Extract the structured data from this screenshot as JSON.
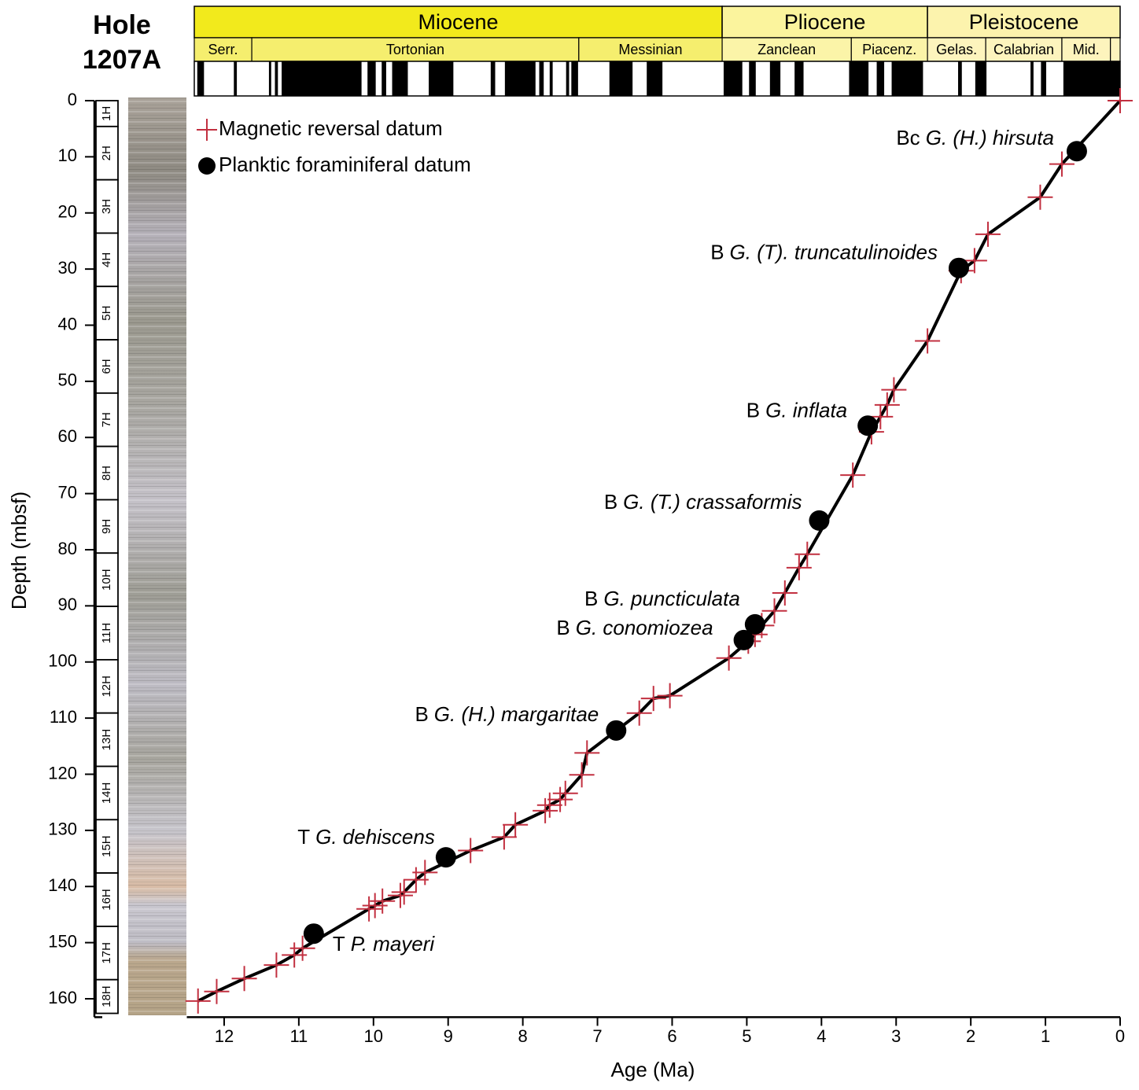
{
  "chart_data": {
    "type": "line",
    "title": [
      "Hole",
      "1207A"
    ],
    "x_label": "Age (Ma)",
    "y_label": "Depth (mbsf)",
    "xlim": [
      12.5,
      0
    ],
    "ylim": [
      0,
      163
    ],
    "y_inverted": true,
    "xticks": [
      12,
      11,
      10,
      9,
      8,
      7,
      6,
      5,
      4,
      3,
      2,
      1,
      0
    ],
    "yticks": [
      0,
      10,
      20,
      30,
      40,
      50,
      60,
      70,
      80,
      90,
      100,
      110,
      120,
      130,
      140,
      150,
      160
    ],
    "legend": "upper left",
    "series": [
      {
        "name": "Magnetic reversal datum",
        "color": "#c23040",
        "marker": "cross",
        "line_color": "#000000",
        "x": [
          0,
          0.78,
          1.07,
          1.77,
          1.95,
          2.13,
          2.58,
          3.03,
          3.12,
          3.21,
          3.33,
          3.58,
          4.19,
          4.3,
          4.49,
          4.63,
          4.8,
          4.89,
          4.98,
          5.24,
          6.03,
          6.25,
          6.44,
          7.14,
          7.21,
          7.43,
          7.5,
          7.64,
          7.7,
          8.1,
          8.25,
          8.7,
          9.31,
          9.43,
          9.59,
          9.64,
          9.88,
          9.98,
          10.06,
          10.95,
          11.06,
          11.3,
          11.73,
          12.1,
          12.35
        ],
        "y": [
          0,
          11.3,
          17.2,
          23.8,
          28.5,
          30.3,
          42.8,
          51.5,
          54.2,
          56.3,
          59.0,
          66.7,
          80.8,
          83.2,
          87.7,
          90.9,
          93.5,
          95.1,
          96.3,
          99.3,
          106.0,
          106.5,
          109.1,
          116.2,
          120.1,
          123.4,
          124.5,
          125.5,
          126.5,
          129.0,
          131.2,
          133.6,
          137.5,
          138.8,
          141.0,
          141.6,
          142.6,
          143.4,
          144.0,
          151.0,
          152.2,
          154.0,
          156.4,
          158.7,
          160.4
        ]
      },
      {
        "name": "Planktic foraminiferal datum",
        "color": "#000000",
        "marker": "dot",
        "x": [
          0.58,
          2.16,
          3.38,
          4.03,
          4.89,
          5.04,
          6.75,
          9.03,
          10.8
        ],
        "y": [
          9.0,
          29.8,
          57.9,
          74.8,
          93.3,
          96.1,
          112.2,
          134.8,
          148.4
        ],
        "labels": [
          {
            "prefix": "Bc",
            "taxon": "G. (H.) hirsuta"
          },
          {
            "prefix": "B",
            "taxon": "G. (T). truncatulinoides"
          },
          {
            "prefix": "B",
            "taxon": "G. inflata"
          },
          {
            "prefix": "B",
            "taxon": "G. (T.) crassaformis"
          },
          {
            "prefix": "B",
            "taxon": "G. puncticulata"
          },
          {
            "prefix": "B",
            "taxon": "G. conomiozea"
          },
          {
            "prefix": "B",
            "taxon": "G. (H.) margaritae"
          },
          {
            "prefix": "T",
            "taxon": "G. dehiscens"
          },
          {
            "prefix": "T",
            "taxon": "P. mayeri"
          }
        ]
      }
    ],
    "epochs": {
      "names": [
        "Miocene",
        "Pliocene",
        "Pleistocene"
      ],
      "ranges": [
        [
          12.4,
          5.33
        ],
        [
          5.33,
          2.58
        ],
        [
          2.58,
          0
        ]
      ],
      "colors": [
        "#f2ea1c",
        "#fbf49d",
        "#fcf3ad"
      ]
    },
    "stages": {
      "names": [
        "Serr.",
        "Tortonian",
        "Messinian",
        "Zanclean",
        "Piacenz.",
        "Gelas.",
        "Calabrian",
        "Mid.",
        null
      ],
      "ranges": [
        [
          12.4,
          11.63
        ],
        [
          11.63,
          7.25
        ],
        [
          7.25,
          5.33
        ],
        [
          5.33,
          3.6
        ],
        [
          3.6,
          2.58
        ],
        [
          2.58,
          1.8
        ],
        [
          1.8,
          0.78
        ],
        [
          0.78,
          0.13
        ],
        [
          0.13,
          0
        ]
      ],
      "colors": [
        "#f5ee6e",
        "#f5ee6e",
        "#f5ee6e",
        "#fbf4a8",
        "#fbf4a8",
        "#fdf4bd",
        "#fdf4bd",
        "#fdf4bd",
        "#fdf4bd"
      ]
    },
    "polarity_normal": [
      [
        12.36,
        12.27
      ],
      [
        11.87,
        11.83
      ],
      [
        11.4,
        11.37
      ],
      [
        11.32,
        11.28
      ],
      [
        11.23,
        10.16
      ],
      [
        10.08,
        9.97
      ],
      [
        9.89,
        9.83
      ],
      [
        9.75,
        9.54
      ],
      [
        9.26,
        8.93
      ],
      [
        8.43,
        8.37
      ],
      [
        8.24,
        7.83
      ],
      [
        7.78,
        7.72
      ],
      [
        7.64,
        7.6
      ],
      [
        7.42,
        7.38
      ],
      [
        7.35,
        7.26
      ],
      [
        6.84,
        6.53
      ],
      [
        6.34,
        6.13
      ],
      [
        5.31,
        5.06
      ],
      [
        4.97,
        4.88
      ],
      [
        4.69,
        4.55
      ],
      [
        4.36,
        4.24
      ],
      [
        3.63,
        3.37
      ],
      [
        3.26,
        3.16
      ],
      [
        3.06,
        2.64
      ],
      [
        2.17,
        2.12
      ],
      [
        1.94,
        1.79
      ],
      [
        1.2,
        1.16
      ],
      [
        1.06,
        0.99
      ],
      [
        0.76,
        0
      ]
    ],
    "cores": {
      "names": [
        "1H",
        "2H",
        "3H",
        "4H",
        "5H",
        "6H",
        "7H",
        "8H",
        "9H",
        "10H",
        "11H",
        "12H",
        "13H",
        "14H",
        "15H",
        "16H",
        "17H",
        "18H"
      ],
      "depths": [
        [
          0,
          4.6
        ],
        [
          4.6,
          14.1
        ],
        [
          14.1,
          23.6
        ],
        [
          23.6,
          33.1
        ],
        [
          33.1,
          42.6
        ],
        [
          42.6,
          52.1
        ],
        [
          52.1,
          61.6
        ],
        [
          61.6,
          71.1
        ],
        [
          71.1,
          80.6
        ],
        [
          80.6,
          90.1
        ],
        [
          90.1,
          99.6
        ],
        [
          99.6,
          109.1
        ],
        [
          109.1,
          118.6
        ],
        [
          118.6,
          128.1
        ],
        [
          128.1,
          137.6
        ],
        [
          137.6,
          147.1
        ],
        [
          147.1,
          156.6
        ],
        [
          156.6,
          162.6
        ]
      ]
    }
  }
}
